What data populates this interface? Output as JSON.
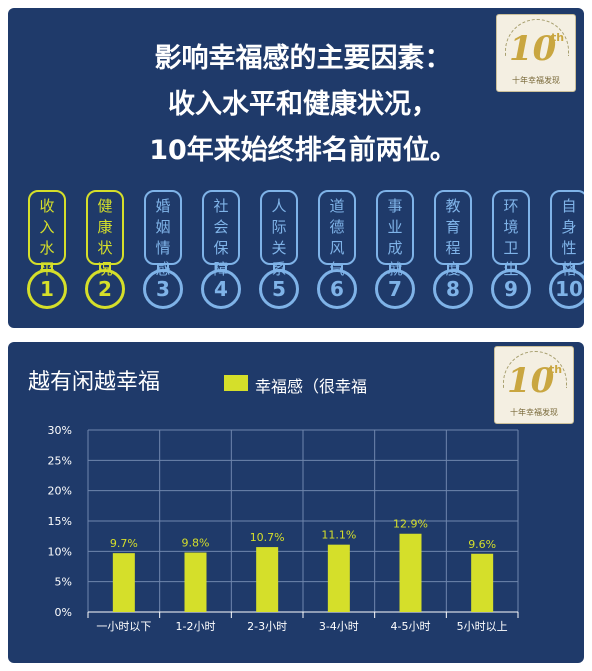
{
  "top": {
    "headline": [
      "影响幸福感的主要因素：",
      "收入水平和健康状况，",
      "10年来始终排名前两位。"
    ],
    "factors": [
      {
        "rank": "1",
        "label": "收入水平",
        "highlight": true
      },
      {
        "rank": "2",
        "label": "健康状况",
        "highlight": true
      },
      {
        "rank": "3",
        "label": "婚姻情感",
        "highlight": false
      },
      {
        "rank": "4",
        "label": "社会保障",
        "highlight": false
      },
      {
        "rank": "5",
        "label": "人际关系",
        "highlight": false
      },
      {
        "rank": "6",
        "label": "道德风气",
        "highlight": false
      },
      {
        "rank": "7",
        "label": "事业成就",
        "highlight": false
      },
      {
        "rank": "8",
        "label": "教育程度",
        "highlight": false
      },
      {
        "rank": "9",
        "label": "环境卫生",
        "highlight": false
      },
      {
        "rank": "10",
        "label": "自身性格",
        "highlight": false
      }
    ],
    "logo": {
      "number": "10",
      "suffix": "th",
      "caption": "十年幸福发现"
    }
  },
  "chart_data": {
    "type": "bar",
    "title": "越有闲越幸福",
    "legend_position": "top",
    "series": [
      {
        "name": "幸福感（很幸福",
        "values": [
          9.7,
          9.8,
          10.7,
          11.1,
          12.9,
          9.6
        ]
      }
    ],
    "categories": [
      "一小时以下",
      "1-2小时",
      "2-3小时",
      "3-4小时",
      "4-5小时",
      "5小时以上"
    ],
    "data_labels": [
      "9.7%",
      "9.8%",
      "10.7%",
      "11.1%",
      "12.9%",
      "9.6%"
    ],
    "yticks": [
      "0%",
      "5%",
      "10%",
      "15%",
      "20%",
      "25%",
      "30%"
    ],
    "ylim": [
      0,
      30
    ],
    "grid": true,
    "colors": {
      "bar": "#d5df2a",
      "label": "#d5df2a",
      "background": "#1f3a6a"
    }
  },
  "bottom_logo": {
    "number": "10",
    "suffix": "th",
    "caption": "十年幸福发现"
  }
}
